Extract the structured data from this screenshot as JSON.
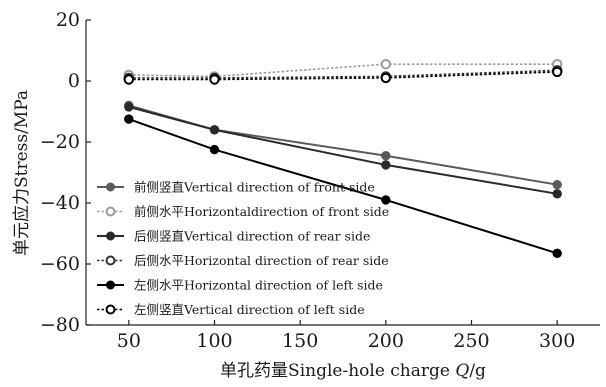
{
  "chart_data": {
    "type": "line",
    "xlabel_prefix": "单孔药量Single-hole charge ",
    "xlabel_italic": "Q",
    "xlabel_suffix": "/g",
    "ylabel": "单元应力Stress/MPa",
    "x": [
      50,
      100,
      200,
      300
    ],
    "xlim": [
      25,
      325
    ],
    "ylim": [
      -80,
      20
    ],
    "xticks": [
      50,
      100,
      150,
      200,
      250,
      300
    ],
    "yticks": [
      -80,
      -60,
      -40,
      -20,
      0,
      20
    ],
    "ytick_labels": [
      "−80",
      "−60",
      "−40",
      "−20",
      "0",
      "20"
    ],
    "legend_position": "bottom-left",
    "series": [
      {
        "name": "前侧竖直Vertical  direction of front side",
        "values": [
          -8,
          -16,
          -24.5,
          -34
        ],
        "color": "#5a5a5a",
        "dashed": false,
        "hollow": false
      },
      {
        "name": "前侧水平Horizontaldirection of front side",
        "values": [
          2,
          1.5,
          5.5,
          5.5
        ],
        "color": "#9a9a9a",
        "dashed": true,
        "hollow": true
      },
      {
        "name": "后侧竖直Vertical direction of rear side",
        "values": [
          -8.5,
          -16,
          -27.5,
          -37
        ],
        "color": "#2a2a2a",
        "dashed": false,
        "hollow": false
      },
      {
        "name": "后侧水平Horizontal direction of rear side",
        "values": [
          1,
          1,
          1.5,
          3.5
        ],
        "color": "#333333",
        "dashed": true,
        "hollow": true
      },
      {
        "name": "左侧水平Horizontal direction of left side",
        "values": [
          -12.5,
          -22.5,
          -39,
          -56.5
        ],
        "color": "#000000",
        "dashed": false,
        "hollow": false
      },
      {
        "name": "左侧竖直Vertical direction of left side",
        "values": [
          0.5,
          0.5,
          1,
          3
        ],
        "color": "#000000",
        "dashed": true,
        "hollow": true
      }
    ]
  }
}
